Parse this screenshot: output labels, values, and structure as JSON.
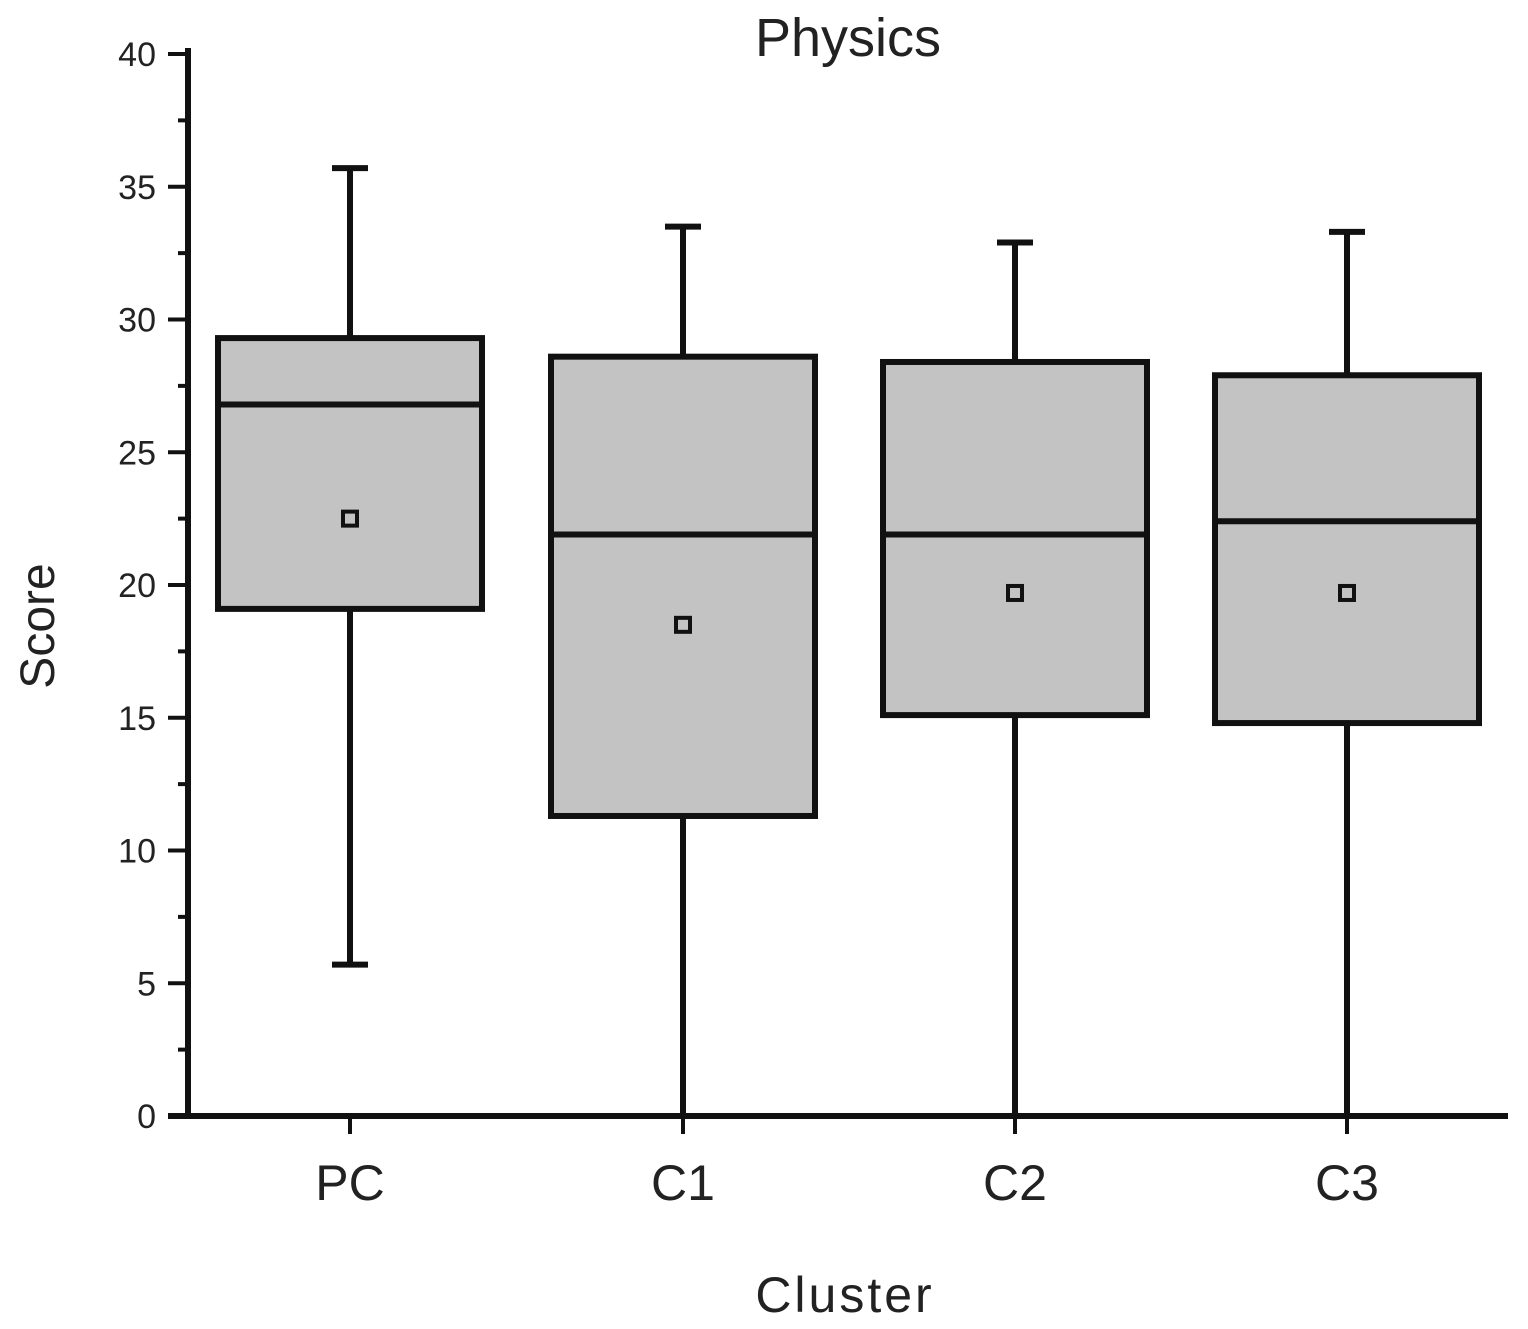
{
  "chart_data": {
    "type": "box",
    "title": "Physics",
    "xlabel": "Cluster",
    "ylabel": "Score",
    "ylim": [
      0,
      40
    ],
    "yticks": [
      0,
      5,
      10,
      15,
      20,
      25,
      30,
      35,
      40
    ],
    "categories": [
      "PC",
      "C1",
      "C2",
      "C3"
    ],
    "boxes": [
      {
        "category": "PC",
        "min": 5.7,
        "q1": 19.1,
        "median": 26.8,
        "q3": 29.3,
        "max": 35.7,
        "mean": 22.5
      },
      {
        "category": "C1",
        "min": 0,
        "q1": 11.3,
        "median": 21.9,
        "q3": 28.6,
        "max": 33.5,
        "mean": 18.5
      },
      {
        "category": "C2",
        "min": 0,
        "q1": 15.1,
        "median": 21.9,
        "q3": 28.4,
        "max": 32.9,
        "mean": 19.7
      },
      {
        "category": "C3",
        "min": 0,
        "q1": 14.8,
        "median": 22.4,
        "q3": 27.9,
        "max": 33.3,
        "mean": 19.7
      }
    ],
    "grid": false,
    "legend": "none",
    "colors": {
      "box_fill": "#c3c3c3",
      "stroke": "#111111",
      "text": "#222222"
    }
  }
}
